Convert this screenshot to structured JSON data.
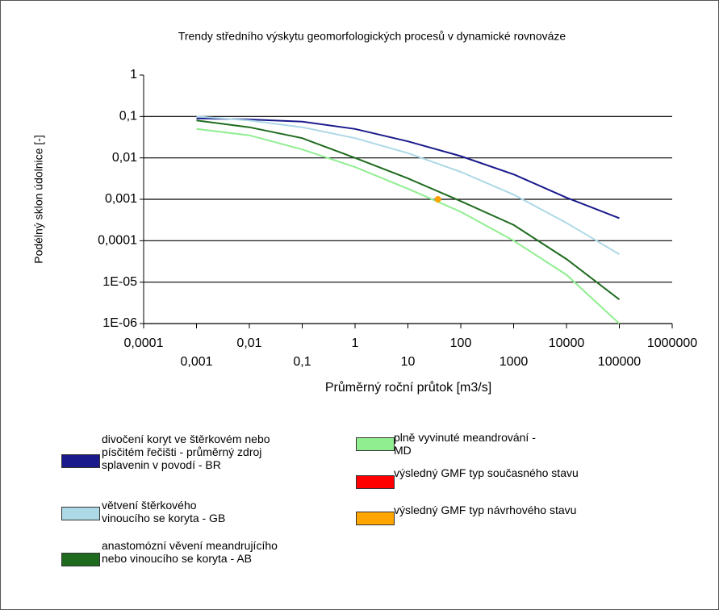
{
  "chart_data": {
    "type": "line",
    "title": "Trendy středního výskytu geomorfologických procesů v dynamické rovnováze",
    "x_label": "Průměrný roční průtok [m3/s]",
    "y_label": "Podélný sklon údolnice [-]",
    "log_x": true,
    "log_y": true,
    "grid": true,
    "xlim": [
      0.0001,
      1000000
    ],
    "ylim": [
      1e-06,
      1
    ],
    "xticks": [
      {
        "value": 0.0001,
        "label": "0,0001"
      },
      {
        "value": 0.001,
        "label": "0,001"
      },
      {
        "value": 0.01,
        "label": "0,01"
      },
      {
        "value": 0.1,
        "label": "0,1"
      },
      1,
      10,
      100,
      1000,
      10000,
      100000,
      1000000
    ],
    "yticks": [
      1,
      {
        "value": 0.1,
        "label": "0,1"
      },
      {
        "value": 0.01,
        "label": "0,01"
      },
      {
        "value": 0.001,
        "label": "0,001"
      },
      {
        "value": 0.0001,
        "label": "0,0001"
      },
      {
        "value": 1e-05,
        "label": "1E-05"
      },
      {
        "value": 1e-06,
        "label": "1E-06"
      }
    ],
    "series": [
      {
        "name": "divočení koryt ve štěrkovém nebo písčitém řečišti - průměrný zdroj splavenin v povodí - BR",
        "color": "#1a1a8c",
        "mode": "line",
        "x": [
          0.001,
          0.01,
          0.1,
          1,
          10,
          100,
          1000,
          10000,
          100000
        ],
        "values": [
          0.09,
          0.085,
          0.075,
          0.05,
          0.025,
          0.011,
          0.004,
          0.0011,
          0.00035
        ]
      },
      {
        "name": "větvení štěrkového vinoucího se koryta - GB",
        "color": "#add8e6",
        "mode": "line",
        "x": [
          0.001,
          0.01,
          0.1,
          1,
          10,
          100,
          1000,
          10000,
          100000
        ],
        "values": [
          0.1,
          0.08,
          0.055,
          0.03,
          0.013,
          0.0046,
          0.0013,
          0.00027,
          4.7e-05
        ]
      },
      {
        "name": "anastomózní věvení meandrujícího nebo vinoucího se koryta - AB",
        "color": "#1e6b1e",
        "mode": "line",
        "x": [
          0.001,
          0.01,
          0.1,
          1,
          10,
          100,
          1000,
          10000,
          100000
        ],
        "values": [
          0.08,
          0.055,
          0.03,
          0.01,
          0.0032,
          0.0009,
          0.00024,
          3.6e-05,
          3.8e-06
        ]
      },
      {
        "name": "plně vyvinuté meandrování - MD",
        "color": "#90ee90",
        "mode": "line",
        "x": [
          0.001,
          0.01,
          0.1,
          1,
          10,
          100,
          1000,
          10000,
          100000
        ],
        "values": [
          0.05,
          0.035,
          0.016,
          0.006,
          0.0018,
          0.0005,
          0.0001,
          1.5e-05,
          1e-06
        ]
      },
      {
        "name": "výsledný GMF typ současného stavu",
        "color": "#ff0000",
        "mode": "point",
        "x": [],
        "values": []
      },
      {
        "name": "výsledný GMF typ návrhového stavu",
        "color": "#ffa500",
        "mode": "point",
        "x": [
          37
        ],
        "values": [
          0.001
        ]
      }
    ]
  }
}
